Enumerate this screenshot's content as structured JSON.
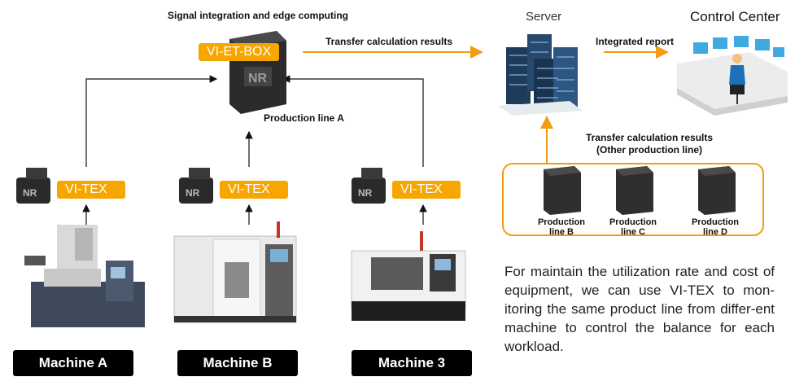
{
  "top": {
    "signal_title": "Signal integration and edge computing",
    "box_tag": "VI-ET-BOX",
    "production_line_a": "Production line A",
    "transfer_results": "Transfer calculation results",
    "server": "Server",
    "integrated_report": "Integrated report",
    "control_center": "Control Center"
  },
  "other_lines": {
    "title_line1": "Transfer calculation results",
    "title_line2": "(Other production line)",
    "units": [
      {
        "line1": "Production",
        "line2": "line B"
      },
      {
        "line1": "Production",
        "line2": "line C"
      },
      {
        "line1": "Production",
        "line2": "line D"
      }
    ]
  },
  "machines": [
    {
      "sensor_tag": "VI-TEX",
      "label": "Machine A"
    },
    {
      "sensor_tag": "VI-TEX",
      "label": "Machine B"
    },
    {
      "sensor_tag": "VI-TEX",
      "label": "Machine 3"
    }
  ],
  "description": "For maintain the utilization rate and cost of equipment, we can use VI-TEX to mon-itoring the same product line from differ-ent machine to control the balance for each workload.",
  "colors": {
    "accent": "#f7a600",
    "label_bg": "#000000"
  }
}
